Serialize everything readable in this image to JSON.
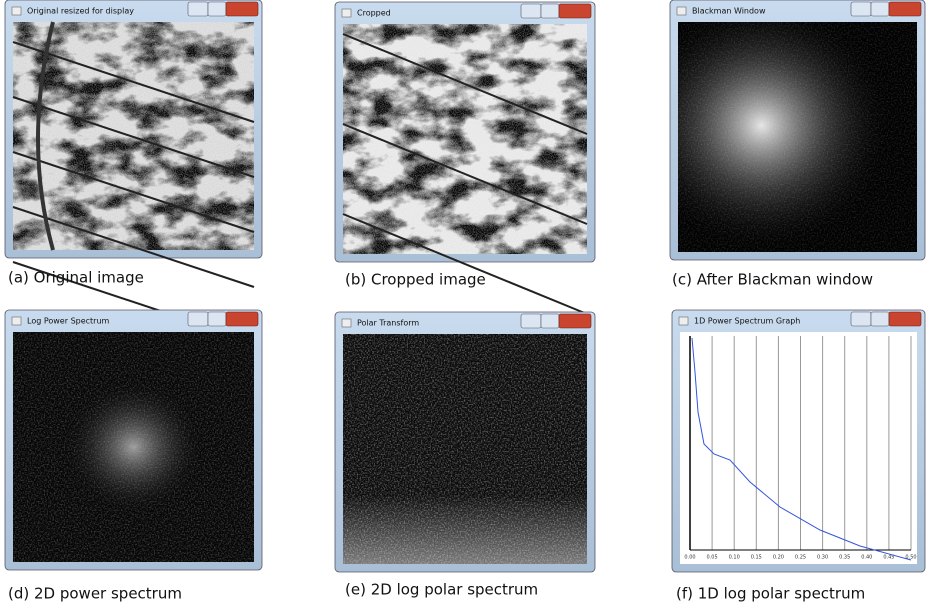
{
  "panels": [
    {
      "title": "Original resized for display",
      "caption": "(a)  Original image"
    },
    {
      "title": "Cropped",
      "caption": "(b)  Cropped image"
    },
    {
      "title": "Blackman Window",
      "caption": "(c) After Blackman window"
    },
    {
      "title": "Log Power Spectrum",
      "caption": "(d) 2D power spectrum"
    },
    {
      "title": "Polar Transform",
      "caption": "(e) 2D log polar spectrum"
    },
    {
      "title": "1D Power Spectrum Graph",
      "caption": "(f) 1D log polar spectrum",
      "xticks": [
        {
          "value": 0,
          "label": "0.00"
        },
        {
          "value": 0.05,
          "label": "0.05"
        },
        {
          "value": 0.1,
          "label": "0.10"
        },
        {
          "value": 0.15,
          "label": "0.15"
        },
        {
          "value": 0.2,
          "label": "0.20"
        },
        {
          "value": 0.25,
          "label": "0.25"
        },
        {
          "value": 0.3,
          "label": "0.30"
        },
        {
          "value": 0.35,
          "label": "0.35"
        },
        {
          "value": 0.4,
          "label": "0.40"
        },
        {
          "value": 0.45,
          "label": "0.45"
        },
        {
          "value": 0.5,
          "label": "0.50"
        }
      ],
      "xlim": [
        0,
        0.5
      ]
    }
  ]
}
